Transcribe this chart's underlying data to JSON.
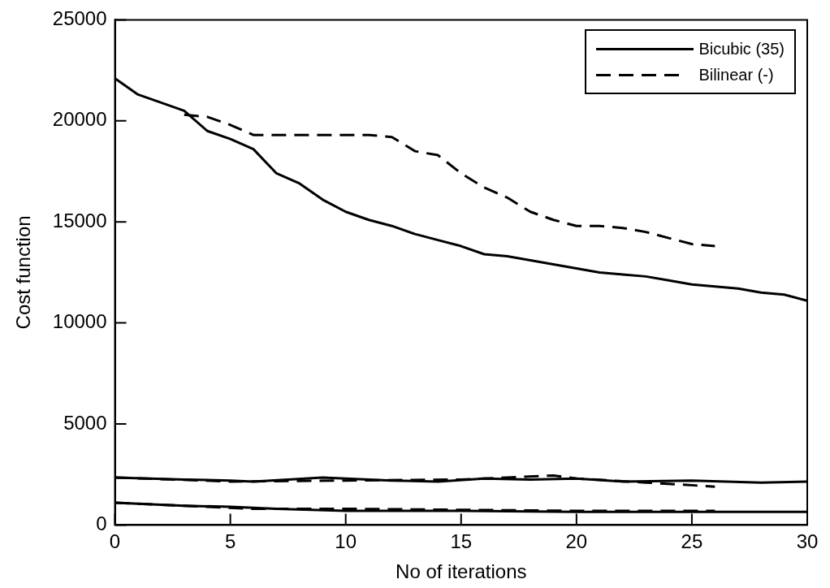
{
  "chart_data": {
    "type": "line",
    "xlabel": "No of iterations",
    "ylabel": "Cost function",
    "xlim": [
      0,
      30
    ],
    "xticks": [
      0,
      5,
      10,
      15,
      20,
      25,
      30
    ],
    "ylim": [
      0,
      25000
    ],
    "yticks": [
      0,
      5000,
      10000,
      15000,
      20000,
      25000
    ],
    "grid": false,
    "legend": "top right",
    "marker": "none",
    "series": [
      {
        "name": "Bicubic (35)",
        "color": "#000000",
        "line_style": "solid",
        "x": [
          0,
          1,
          2,
          3,
          4,
          5,
          6,
          7,
          8,
          9,
          10,
          11,
          12,
          13,
          14,
          15,
          16,
          17,
          18,
          19,
          20,
          21,
          22,
          23,
          24,
          25,
          26,
          27,
          28,
          29,
          30
        ],
        "values": [
          22100,
          21300,
          20900,
          20500,
          19500,
          19100,
          18600,
          17400,
          16900,
          16100,
          15500,
          15100,
          14800,
          14400,
          14100,
          13800,
          13400,
          13300,
          13100,
          12900,
          12700,
          12500,
          12400,
          12300,
          12100,
          11900,
          11800,
          11700,
          11500,
          11400,
          11100
        ]
      },
      {
        "name": "Bilinear (-)",
        "color": "#000000",
        "line_style": "dashed",
        "x": [
          3,
          4,
          5,
          6,
          7,
          8,
          9,
          10,
          11,
          12,
          13,
          14,
          15,
          16,
          17,
          18,
          19,
          20,
          21,
          22,
          23,
          24,
          25,
          26
        ],
        "values": [
          20300,
          20200,
          19800,
          19300,
          19300,
          19300,
          19300,
          19300,
          19300,
          19200,
          18500,
          18300,
          17400,
          16700,
          16200,
          15500,
          15100,
          14800,
          14800,
          14700,
          14500,
          14200,
          13900,
          13800
        ]
      },
      {
        "color": "#000000",
        "line_style": "solid",
        "x": [
          0,
          3,
          5,
          6,
          9,
          10,
          12,
          14,
          16,
          18,
          20,
          22,
          25,
          28,
          30
        ],
        "values": [
          2350,
          2250,
          2200,
          2150,
          2350,
          2300,
          2200,
          2150,
          2300,
          2250,
          2300,
          2150,
          2200,
          2100,
          2150
        ]
      },
      {
        "color": "#000000",
        "line_style": "dashed",
        "x": [
          0,
          5,
          10,
          15,
          17,
          19,
          20,
          23,
          26
        ],
        "values": [
          2350,
          2150,
          2200,
          2250,
          2350,
          2450,
          2300,
          2100,
          1900
        ]
      },
      {
        "color": "#000000",
        "line_style": "solid",
        "x": [
          0,
          3,
          5,
          7,
          10,
          15,
          20,
          25,
          30
        ],
        "values": [
          1100,
          950,
          900,
          800,
          700,
          700,
          650,
          650,
          650
        ]
      },
      {
        "color": "#000000",
        "line_style": "dashed",
        "x": [
          0,
          3,
          6,
          10,
          15,
          20,
          26
        ],
        "values": [
          1100,
          950,
          800,
          800,
          750,
          700,
          700
        ]
      }
    ]
  }
}
